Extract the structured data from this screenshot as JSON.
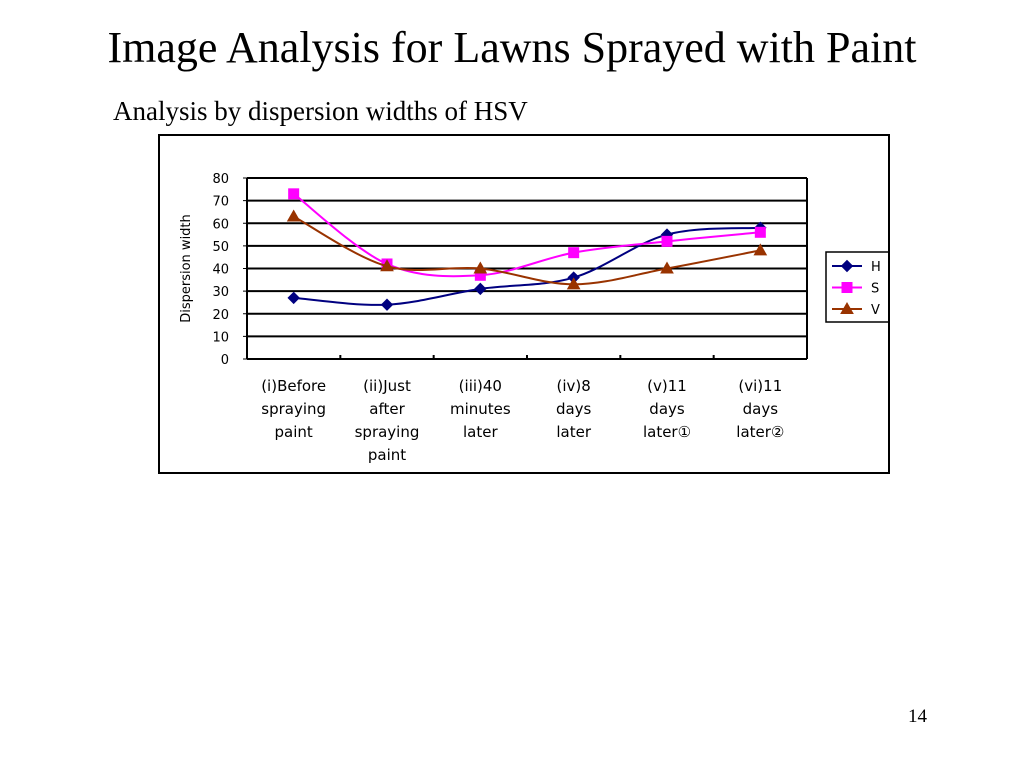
{
  "slide": {
    "title": "Image Analysis for Lawns Sprayed with Paint",
    "subtitle": "Analysis by dispersion widths of HSV",
    "page_number": "14"
  },
  "chart_data": {
    "type": "line",
    "title": "",
    "xlabel": "",
    "ylabel": "Dispersion width",
    "ylim": [
      0,
      80
    ],
    "yticks": [
      0,
      10,
      20,
      30,
      40,
      50,
      60,
      70,
      80
    ],
    "grid": true,
    "legend_position": "right",
    "categories": [
      [
        "(i)Before",
        "spraying",
        "paint"
      ],
      [
        "(ii)Just",
        "after",
        "spraying",
        "paint"
      ],
      [
        "(iii)40",
        "minutes",
        "later"
      ],
      [
        "(iv)8",
        "days",
        "later"
      ],
      [
        "(v)11",
        "days",
        "later①"
      ],
      [
        "(vi)11",
        "days",
        "later②"
      ]
    ],
    "series": [
      {
        "name": "H",
        "color": "#000080",
        "marker": "diamond",
        "values": [
          27,
          24,
          31,
          36,
          55,
          58
        ]
      },
      {
        "name": "S",
        "color": "#FF00FF",
        "marker": "square",
        "values": [
          73,
          42,
          37,
          47,
          52,
          56
        ]
      },
      {
        "name": "V",
        "color": "#993300",
        "marker": "triangle",
        "values": [
          63,
          41,
          40,
          33,
          40,
          48
        ]
      }
    ]
  }
}
